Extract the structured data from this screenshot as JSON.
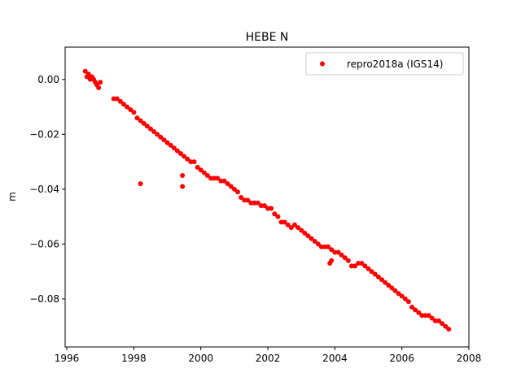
{
  "chart_data": {
    "type": "scatter",
    "title": "HEBE N",
    "xlabel": "",
    "ylabel": "m",
    "xlim": [
      1995.95,
      2008.0
    ],
    "ylim": [
      -0.0975,
      0.0118
    ],
    "xticks": [
      1996,
      1998,
      2000,
      2002,
      2004,
      2006,
      2008
    ],
    "yticks": [
      0.0,
      -0.02,
      -0.04,
      -0.06,
      -0.08
    ],
    "xtick_labels": [
      "1996",
      "1998",
      "2000",
      "2002",
      "2004",
      "2006",
      "2008"
    ],
    "ytick_labels": [
      "0.00",
      "−0.02",
      "−0.04",
      "−0.06",
      "−0.08"
    ],
    "grid": false,
    "legend_position": "top-right",
    "series": [
      {
        "name": "repro2018a (IGS14)",
        "color": "#ff0000",
        "marker": "circle",
        "x": [
          1996.55,
          1996.6,
          1996.65,
          1996.7,
          1996.75,
          1996.8,
          1996.85,
          1996.9,
          1996.95,
          1997.0,
          1997.4,
          1997.5,
          1997.6,
          1997.7,
          1997.8,
          1997.9,
          1998.0,
          1998.1,
          1998.2,
          1998.3,
          1998.4,
          1998.5,
          1998.6,
          1998.7,
          1998.8,
          1998.9,
          1999.0,
          1999.1,
          1999.2,
          1999.3,
          1999.4,
          1999.5,
          1999.6,
          1999.7,
          1999.8,
          1999.9,
          2000.0,
          2000.1,
          2000.2,
          2000.3,
          2000.4,
          2000.5,
          2000.6,
          2000.7,
          2000.8,
          2000.9,
          2001.0,
          2001.1,
          2001.2,
          2001.3,
          2001.4,
          2001.5,
          2001.6,
          2001.7,
          2001.8,
          2001.9,
          2002.0,
          2002.1,
          2002.2,
          2002.3,
          2002.4,
          2002.5,
          2002.6,
          2002.7,
          2002.8,
          2002.9,
          2003.0,
          2003.1,
          2003.2,
          2003.3,
          2003.4,
          2003.5,
          2003.6,
          2003.7,
          2003.8,
          2003.9,
          2004.0,
          2004.1,
          2004.2,
          2004.3,
          2004.4,
          2004.5,
          2004.6,
          2004.7,
          2004.8,
          2004.9,
          2005.0,
          2005.1,
          2005.2,
          2005.3,
          2005.4,
          2005.5,
          2005.6,
          2005.7,
          2005.8,
          2005.9,
          2006.0,
          2006.1,
          2006.2,
          2006.3,
          2006.4,
          2006.5,
          2006.6,
          2006.7,
          2006.8,
          2006.9,
          2007.0,
          2007.1,
          2007.2,
          2007.3,
          2007.4,
          1998.2,
          1999.45,
          1999.45,
          2003.85,
          2003.9
        ],
        "y": [
          0.003,
          0.001,
          0.002,
          0.0,
          0.001,
          0.0,
          -0.001,
          -0.002,
          -0.003,
          -0.001,
          -0.007,
          -0.007,
          -0.008,
          -0.009,
          -0.01,
          -0.011,
          -0.012,
          -0.014,
          -0.015,
          -0.016,
          -0.017,
          -0.018,
          -0.019,
          -0.02,
          -0.021,
          -0.022,
          -0.023,
          -0.024,
          -0.025,
          -0.026,
          -0.027,
          -0.028,
          -0.029,
          -0.03,
          -0.03,
          -0.032,
          -0.033,
          -0.034,
          -0.035,
          -0.036,
          -0.036,
          -0.036,
          -0.037,
          -0.037,
          -0.038,
          -0.039,
          -0.04,
          -0.041,
          -0.043,
          -0.044,
          -0.044,
          -0.045,
          -0.045,
          -0.045,
          -0.046,
          -0.046,
          -0.047,
          -0.047,
          -0.049,
          -0.05,
          -0.052,
          -0.052,
          -0.053,
          -0.054,
          -0.053,
          -0.054,
          -0.055,
          -0.056,
          -0.057,
          -0.058,
          -0.059,
          -0.06,
          -0.061,
          -0.061,
          -0.061,
          -0.062,
          -0.063,
          -0.063,
          -0.064,
          -0.065,
          -0.066,
          -0.068,
          -0.068,
          -0.067,
          -0.067,
          -0.068,
          -0.069,
          -0.07,
          -0.071,
          -0.072,
          -0.073,
          -0.074,
          -0.075,
          -0.076,
          -0.077,
          -0.078,
          -0.079,
          -0.08,
          -0.081,
          -0.083,
          -0.084,
          -0.085,
          -0.086,
          -0.086,
          -0.086,
          -0.087,
          -0.088,
          -0.088,
          -0.089,
          -0.09,
          -0.091,
          -0.038,
          -0.035,
          -0.039,
          -0.067,
          -0.066
        ]
      }
    ]
  }
}
